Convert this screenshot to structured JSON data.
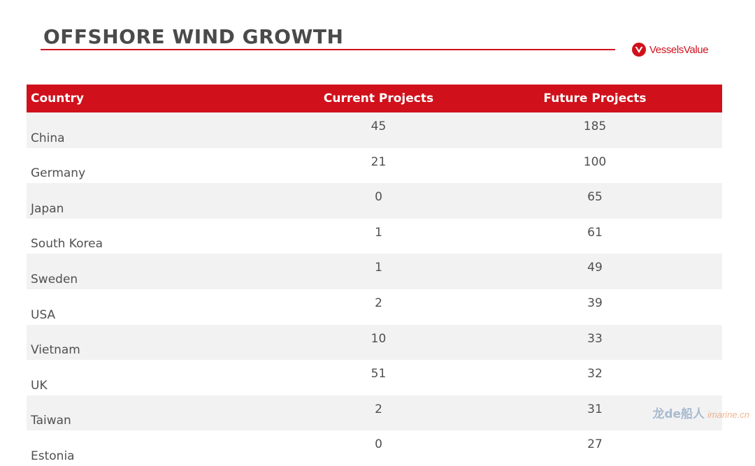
{
  "slide": {
    "title": "OFFSHORE WIND GROWTH",
    "accent_color": "#d0111b",
    "logo": {
      "text": "VesselsValue",
      "icon": "vesselsvalue-logo-icon"
    }
  },
  "table": {
    "headers": [
      "Country",
      "Current Projects",
      "Future Projects"
    ],
    "rows": [
      {
        "country": "China",
        "current": "45",
        "future": "185"
      },
      {
        "country": "Germany",
        "current": "21",
        "future": "100"
      },
      {
        "country": "Japan",
        "current": "0",
        "future": "65"
      },
      {
        "country": "South Korea",
        "current": "1",
        "future": "61"
      },
      {
        "country": "Sweden",
        "current": "1",
        "future": "49"
      },
      {
        "country": "USA",
        "current": "2",
        "future": "39"
      },
      {
        "country": "Vietnam",
        "current": "10",
        "future": "33"
      },
      {
        "country": "UK",
        "current": "51",
        "future": "32"
      },
      {
        "country": "Taiwan",
        "current": "2",
        "future": "31"
      },
      {
        "country": "Estonia",
        "current": "0",
        "future": "27"
      }
    ]
  },
  "watermark": {
    "cn_text": "龙de船人",
    "url": "imarine.cn"
  }
}
